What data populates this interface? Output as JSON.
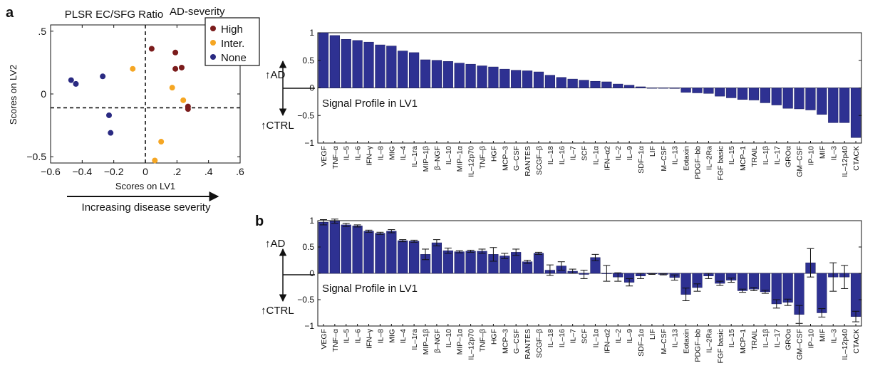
{
  "labels": {
    "panel_a": "a",
    "panel_b": "b",
    "scatter_title": "PLSR EC/SFG Ratio",
    "legend_title": "AD-severity",
    "severity_arrow": "Increasing disease severity",
    "up_ad": "↑AD",
    "up_ctrl": "↑CTRL",
    "signal_profile": "Signal Profile in LV1"
  },
  "colors": {
    "High": "#7b1c1c",
    "Inter.": "#f5a623",
    "None": "#2a2a82",
    "bar": "#2e3192"
  },
  "chart_data": [
    {
      "type": "scatter",
      "title": "PLSR EC/SFG Ratio",
      "xlabel": "Scores on LV1",
      "ylabel": "Scores on LV2",
      "xlim": [
        -0.6,
        0.6
      ],
      "ylim": [
        -0.55,
        0.55
      ],
      "xticks": [
        -0.6,
        -0.4,
        -0.2,
        0,
        0.2,
        0.4,
        0.6
      ],
      "yticks": [
        -0.5,
        0,
        0.5
      ],
      "legend_title": "AD-severity",
      "legend_position": "top-right",
      "series": [
        {
          "name": "High",
          "points": [
            [
              0.04,
              0.36
            ],
            [
              0.19,
              0.33
            ],
            [
              0.19,
              0.2
            ],
            [
              0.23,
              0.21
            ],
            [
              0.27,
              -0.1
            ],
            [
              0.27,
              -0.12
            ]
          ]
        },
        {
          "name": "Inter.",
          "points": [
            [
              -0.08,
              0.2
            ],
            [
              0.17,
              0.05
            ],
            [
              0.24,
              -0.05
            ],
            [
              0.1,
              -0.38
            ],
            [
              0.06,
              -0.53
            ]
          ]
        },
        {
          "name": "None",
          "points": [
            [
              -0.47,
              0.11
            ],
            [
              -0.44,
              0.08
            ],
            [
              -0.27,
              0.14
            ],
            [
              -0.23,
              -0.17
            ],
            [
              -0.22,
              -0.31
            ]
          ]
        }
      ],
      "reference_lines": {
        "x": 0,
        "y": -0.11
      }
    },
    {
      "type": "bar",
      "subtitle": "Signal Profile in LV1",
      "ylim": [
        -1,
        1
      ],
      "yticks": [
        -1,
        -0.5,
        0,
        0.5,
        1
      ],
      "categories": [
        "VEGF",
        "TNF–α",
        "IL–5",
        "IL–6",
        "IFN–γ",
        "IL–8",
        "MIG",
        "IL–4",
        "IL–1ra",
        "MIP–1β",
        "β–NGF",
        "IL–10",
        "MIP–1α",
        "IL–12p70",
        "TNF–β",
        "HGF",
        "MCP–3",
        "G–CSF",
        "RANTES",
        "SCGF–β",
        "IL–18",
        "IL–16",
        "IL–7",
        "SCF",
        "IL–1α",
        "IFN–α2",
        "IL–2",
        "IL–9",
        "SDF–1α",
        "LIF",
        "M–CSF",
        "IL–13",
        "Eotaxin",
        "PDGF–bb",
        "IL–2Ra",
        "FGF basic",
        "IL–15",
        "MCP–1",
        "TRAIL",
        "IL–1β",
        "IL–17",
        "GROα",
        "GM–CSF",
        "IP–10",
        "MIF",
        "IL–3",
        "IL–12p40",
        "CTACK"
      ],
      "values": [
        1.0,
        0.95,
        0.88,
        0.86,
        0.83,
        0.78,
        0.76,
        0.67,
        0.64,
        0.51,
        0.5,
        0.48,
        0.45,
        0.43,
        0.4,
        0.38,
        0.34,
        0.32,
        0.31,
        0.29,
        0.23,
        0.19,
        0.16,
        0.14,
        0.12,
        0.11,
        0.07,
        0.05,
        0.02,
        0.0,
        0.0,
        -0.01,
        -0.08,
        -0.09,
        -0.1,
        -0.15,
        -0.18,
        -0.21,
        -0.22,
        -0.27,
        -0.31,
        -0.37,
        -0.38,
        -0.4,
        -0.48,
        -0.63,
        -0.63,
        -0.9
      ]
    },
    {
      "type": "bar",
      "subtitle": "Signal Profile in LV1",
      "ylim": [
        -1,
        1
      ],
      "yticks": [
        -1,
        -0.5,
        0,
        0.5,
        1
      ],
      "categories": [
        "VEGF",
        "TNF–α",
        "IL–5",
        "IL–6",
        "IFN–γ",
        "IL–8",
        "MIG",
        "IL–4",
        "IL–1ra",
        "MIP–1β",
        "β–NGF",
        "IL–10",
        "MIP–1α",
        "IL–12p70",
        "TNF–β",
        "HGF",
        "MCP–3",
        "G–CSF",
        "RANTES",
        "SCGF–β",
        "IL–18",
        "IL–16",
        "IL–7",
        "SCF",
        "IL–1α",
        "IFN–α2",
        "IL–2",
        "IL–9",
        "SDF–1α",
        "LIF",
        "M–CSF",
        "IL–13",
        "Eotaxin",
        "PDGF–bb",
        "IL–2Ra",
        "FGF basic",
        "IL–15",
        "MCP–1",
        "TRAIL",
        "IL–1β",
        "IL–17",
        "GROα",
        "GM–CSF",
        "IP–10",
        "MIF",
        "IL–3",
        "IL–12p40",
        "CTACK"
      ],
      "values": [
        0.97,
        0.99,
        0.92,
        0.9,
        0.8,
        0.76,
        0.8,
        0.62,
        0.61,
        0.36,
        0.58,
        0.43,
        0.41,
        0.42,
        0.42,
        0.36,
        0.33,
        0.4,
        0.22,
        0.38,
        0.06,
        0.14,
        0.04,
        -0.02,
        0.3,
        0.0,
        -0.07,
        -0.17,
        -0.05,
        -0.01,
        -0.02,
        -0.08,
        -0.4,
        -0.27,
        -0.05,
        -0.19,
        -0.13,
        -0.33,
        -0.3,
        -0.35,
        -0.58,
        -0.55,
        -0.78,
        0.2,
        -0.75,
        -0.07,
        -0.07,
        -0.82
      ],
      "errors": [
        0.05,
        0.04,
        0.03,
        0.02,
        0.02,
        0.02,
        0.03,
        0.02,
        0.02,
        0.1,
        0.06,
        0.05,
        0.02,
        0.02,
        0.04,
        0.13,
        0.05,
        0.06,
        0.03,
        0.02,
        0.1,
        0.08,
        0.04,
        0.08,
        0.06,
        0.15,
        0.08,
        0.07,
        0.05,
        0.01,
        0.01,
        0.05,
        0.12,
        0.07,
        0.05,
        0.04,
        0.04,
        0.03,
        0.03,
        0.03,
        0.08,
        0.06,
        0.17,
        0.27,
        0.08,
        0.27,
        0.22,
        0.1
      ]
    }
  ]
}
